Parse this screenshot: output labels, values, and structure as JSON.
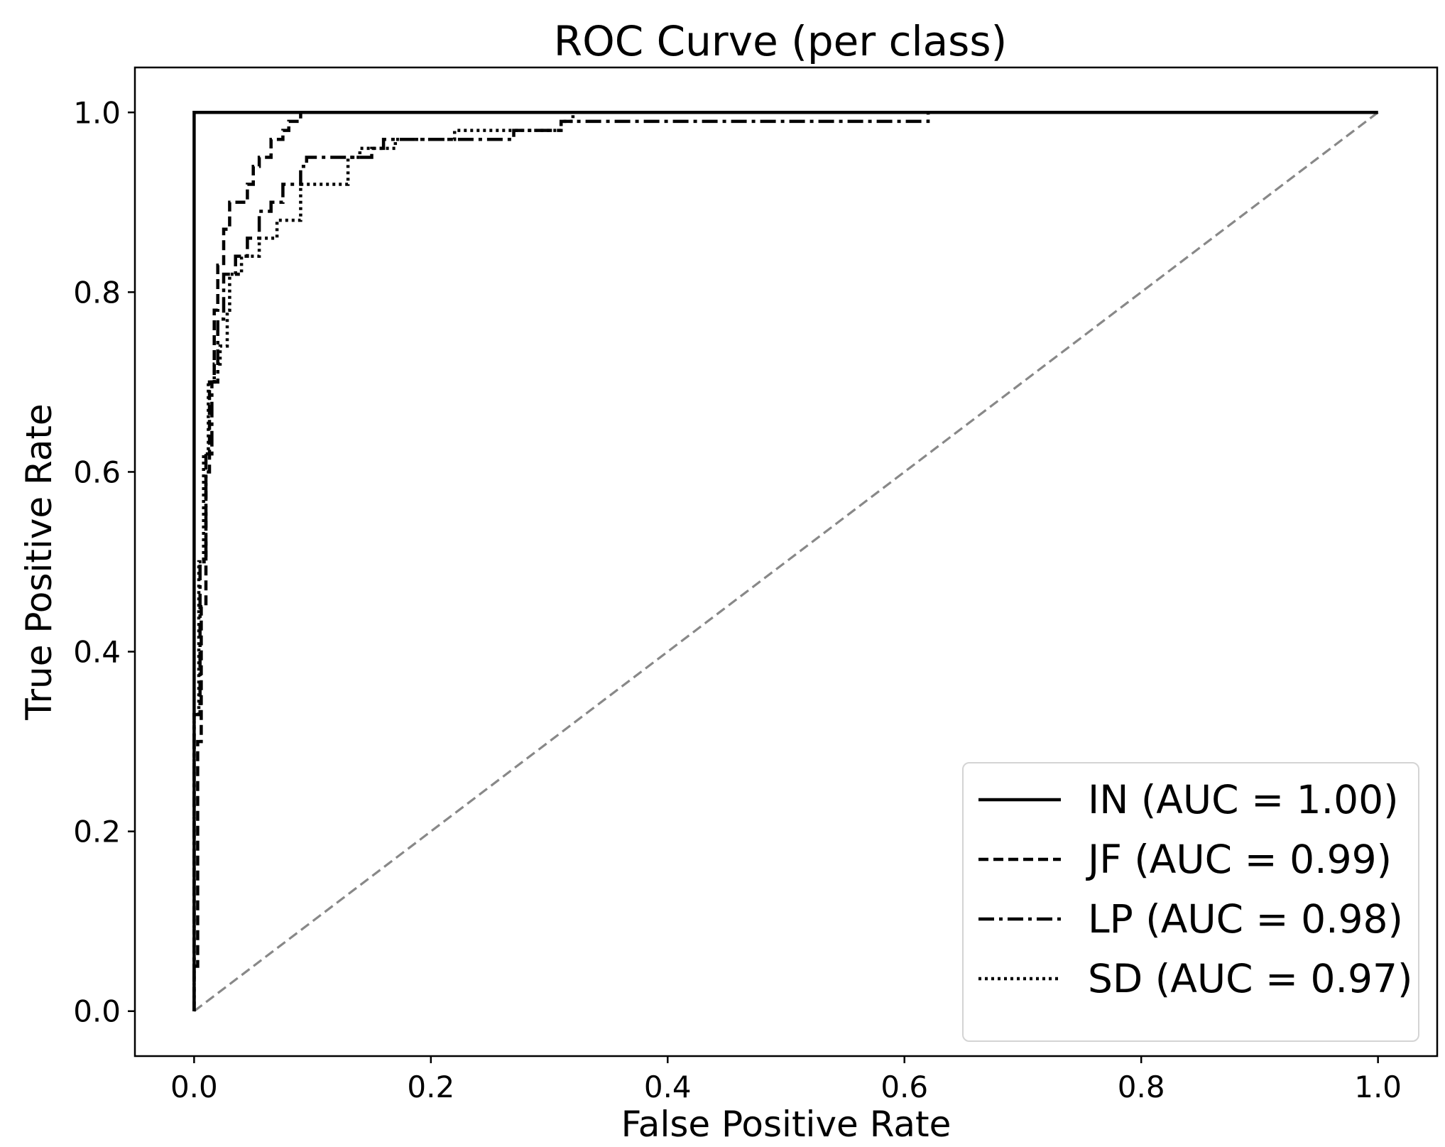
{
  "chart_data": {
    "type": "line",
    "title": "ROC Curve (per class)",
    "xlabel": "False Positive Rate",
    "ylabel": "True Positive Rate",
    "xlim": [
      -0.05,
      1.05
    ],
    "ylim": [
      -0.05,
      1.05
    ],
    "xticks": [
      0.0,
      0.2,
      0.4,
      0.6,
      0.8,
      1.0
    ],
    "xtick_labels": [
      "0.0",
      "0.2",
      "0.4",
      "0.6",
      "0.8",
      "1.0"
    ],
    "yticks": [
      0.0,
      0.2,
      0.4,
      0.6,
      0.8,
      1.0
    ],
    "ytick_labels": [
      "0.0",
      "0.2",
      "0.4",
      "0.6",
      "0.8",
      "1.0"
    ],
    "grid": false,
    "legend_position": "lower-right",
    "series": [
      {
        "name": "IN (AUC = 1.00)",
        "style": "solid",
        "color": "#000000",
        "x": [
          0.0,
          0.0,
          1.0
        ],
        "y": [
          0.0,
          1.0,
          1.0
        ]
      },
      {
        "name": "JF (AUC = 0.99)",
        "style": "dashed",
        "color": "#000000",
        "x": [
          0.0,
          0.0,
          0.003,
          0.003,
          0.006,
          0.006,
          0.01,
          0.01,
          0.013,
          0.013,
          0.017,
          0.017,
          0.02,
          0.02,
          0.025,
          0.025,
          0.03,
          0.03,
          0.045,
          0.045,
          0.05,
          0.05,
          0.055,
          0.055,
          0.065,
          0.065,
          0.075,
          0.075,
          0.08,
          0.08,
          0.09,
          0.09,
          1.0
        ],
        "y": [
          0.0,
          0.05,
          0.05,
          0.3,
          0.3,
          0.45,
          0.45,
          0.6,
          0.6,
          0.7,
          0.7,
          0.78,
          0.78,
          0.83,
          0.83,
          0.87,
          0.87,
          0.9,
          0.9,
          0.92,
          0.92,
          0.94,
          0.94,
          0.95,
          0.95,
          0.97,
          0.97,
          0.98,
          0.98,
          0.99,
          0.99,
          1.0,
          1.0
        ]
      },
      {
        "name": "LP (AUC = 0.98)",
        "style": "dashdot",
        "color": "#000000",
        "x": [
          0.0,
          0.0,
          0.005,
          0.005,
          0.01,
          0.01,
          0.015,
          0.015,
          0.02,
          0.02,
          0.025,
          0.025,
          0.035,
          0.035,
          0.045,
          0.045,
          0.055,
          0.055,
          0.065,
          0.065,
          0.075,
          0.075,
          0.09,
          0.09,
          0.095,
          0.095,
          0.15,
          0.15,
          0.16,
          0.16,
          0.19,
          0.19,
          0.27,
          0.27,
          0.31,
          0.31,
          0.62,
          0.62,
          1.0
        ],
        "y": [
          0.0,
          0.33,
          0.33,
          0.5,
          0.5,
          0.62,
          0.62,
          0.7,
          0.7,
          0.77,
          0.77,
          0.82,
          0.82,
          0.84,
          0.84,
          0.86,
          0.86,
          0.89,
          0.89,
          0.9,
          0.9,
          0.92,
          0.92,
          0.94,
          0.94,
          0.95,
          0.95,
          0.96,
          0.96,
          0.97,
          0.97,
          0.97,
          0.97,
          0.98,
          0.98,
          0.99,
          0.99,
          1.0,
          1.0
        ]
      },
      {
        "name": "SD (AUC = 0.97)",
        "style": "dotted",
        "color": "#000000",
        "x": [
          0.0,
          0.0,
          0.004,
          0.004,
          0.008,
          0.008,
          0.012,
          0.012,
          0.017,
          0.017,
          0.022,
          0.022,
          0.028,
          0.028,
          0.03,
          0.03,
          0.04,
          0.04,
          0.055,
          0.055,
          0.07,
          0.07,
          0.09,
          0.09,
          0.13,
          0.13,
          0.14,
          0.14,
          0.17,
          0.17,
          0.22,
          0.22,
          0.31,
          0.31,
          0.32,
          0.32,
          1.0
        ],
        "y": [
          0.0,
          0.33,
          0.33,
          0.5,
          0.5,
          0.62,
          0.62,
          0.7,
          0.7,
          0.72,
          0.72,
          0.74,
          0.74,
          0.78,
          0.78,
          0.82,
          0.82,
          0.84,
          0.84,
          0.86,
          0.86,
          0.88,
          0.88,
          0.92,
          0.92,
          0.95,
          0.95,
          0.96,
          0.96,
          0.97,
          0.97,
          0.98,
          0.98,
          0.99,
          0.99,
          1.0,
          1.0
        ]
      },
      {
        "name": "",
        "style": "dashed",
        "color": "#888888",
        "x": [
          0.0,
          1.0
        ],
        "y": [
          0.0,
          1.0
        ]
      }
    ]
  }
}
